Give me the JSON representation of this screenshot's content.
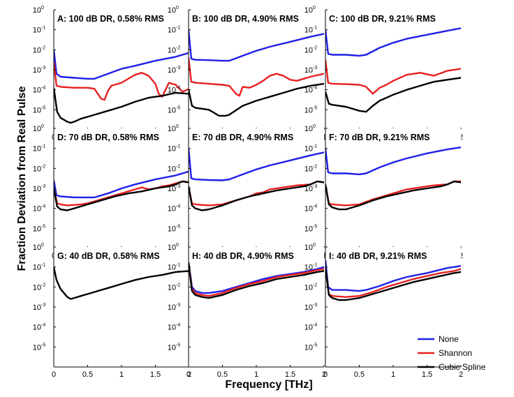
{
  "chart_data": {
    "type": "line",
    "xlabel": "Frequency [THz]",
    "ylabel": "Fraction Deviation from Real Pulse",
    "xlim": [
      0,
      2
    ],
    "ylim_log10": [
      -6,
      0
    ],
    "x_ticks": [
      "0",
      "0.5",
      "1",
      "1.5",
      "2"
    ],
    "y_ticks": [
      {
        "base": "10",
        "exp": "0"
      },
      {
        "base": "10",
        "exp": "-1"
      },
      {
        "base": "10",
        "exp": "-2"
      },
      {
        "base": "10",
        "exp": "-3"
      },
      {
        "base": "10",
        "exp": "-4"
      },
      {
        "base": "10",
        "exp": "-5"
      }
    ],
    "series_colors": {
      "None": "#1f1fe8",
      "Shannon": "#e81f1f",
      "Cubic Spline": "#000000"
    },
    "legend": {
      "location": "bottom-right",
      "entries": [
        {
          "name": "None",
          "color": "#1f1fe8"
        },
        {
          "name": "Shannon",
          "color": "#e81f1f"
        },
        {
          "name": "Cubic Spline",
          "color": "#000000"
        }
      ]
    },
    "panels": [
      {
        "title": "A: 100 dB DR, 0.58% RMS",
        "series": [
          {
            "name": "None",
            "x": [
              0,
              0.04,
              0.1,
              0.3,
              0.5,
              0.6,
              0.8,
              1.0,
              1.2,
              1.5,
              1.8,
              2.0
            ],
            "log10y": [
              -2.0,
              -3.2,
              -3.35,
              -3.4,
              -3.45,
              -3.45,
              -3.2,
              -2.95,
              -2.8,
              -2.55,
              -2.35,
              -2.15
            ]
          },
          {
            "name": "Shannon",
            "x": [
              0,
              0.04,
              0.1,
              0.3,
              0.5,
              0.6,
              0.7,
              0.75,
              0.8,
              0.85,
              0.9,
              1.0,
              1.1,
              1.2,
              1.3,
              1.4,
              1.5,
              1.55,
              1.6,
              1.7,
              1.8,
              1.9,
              2.0
            ],
            "log10y": [
              -2.6,
              -3.8,
              -3.85,
              -3.9,
              -3.9,
              -3.95,
              -4.45,
              -4.5,
              -4.05,
              -3.8,
              -3.75,
              -3.65,
              -3.45,
              -3.25,
              -3.15,
              -3.3,
              -3.7,
              -4.2,
              -4.35,
              -3.65,
              -3.75,
              -4.1,
              -3.95
            ]
          },
          {
            "name": "Cubic Spline",
            "x": [
              0,
              0.05,
              0.1,
              0.2,
              0.25,
              0.3,
              0.4,
              0.5,
              0.6,
              0.8,
              1.0,
              1.2,
              1.4,
              1.6,
              1.8,
              2.0
            ],
            "log10y": [
              -3.9,
              -5.1,
              -5.4,
              -5.6,
              -5.65,
              -5.6,
              -5.45,
              -5.35,
              -5.25,
              -5.05,
              -4.85,
              -4.6,
              -4.4,
              -4.3,
              -4.15,
              -4.2
            ]
          }
        ]
      },
      {
        "title": "B: 100 dB DR, 4.90% RMS",
        "series": [
          {
            "name": "None",
            "x": [
              0,
              0.04,
              0.1,
              0.3,
              0.5,
              0.6,
              0.8,
              1.0,
              1.2,
              1.5,
              1.8,
              2.0
            ],
            "log10y": [
              -1.0,
              -2.45,
              -2.5,
              -2.52,
              -2.55,
              -2.55,
              -2.3,
              -2.05,
              -1.85,
              -1.6,
              -1.35,
              -1.2
            ]
          },
          {
            "name": "Shannon",
            "x": [
              0,
              0.04,
              0.1,
              0.3,
              0.5,
              0.6,
              0.7,
              0.75,
              0.8,
              0.9,
              1.0,
              1.1,
              1.2,
              1.3,
              1.4,
              1.5,
              1.6,
              1.8,
              2.0
            ],
            "log10y": [
              -2.4,
              -3.6,
              -3.65,
              -3.7,
              -3.75,
              -3.8,
              -4.2,
              -4.3,
              -3.85,
              -3.9,
              -3.75,
              -3.55,
              -3.3,
              -3.2,
              -3.3,
              -3.5,
              -3.55,
              -3.35,
              -3.2
            ]
          },
          {
            "name": "Cubic Spline",
            "x": [
              0,
              0.05,
              0.1,
              0.3,
              0.45,
              0.55,
              0.6,
              0.8,
              1.0,
              1.2,
              1.4,
              1.6,
              1.8,
              2.0
            ],
            "log10y": [
              -4.0,
              -4.8,
              -4.9,
              -5.0,
              -5.3,
              -5.3,
              -5.25,
              -4.8,
              -4.55,
              -4.35,
              -4.15,
              -3.95,
              -3.8,
              -3.7
            ]
          }
        ]
      },
      {
        "title": "C: 100 dB DR, 9.21% RMS",
        "series": [
          {
            "name": "None",
            "x": [
              0,
              0.04,
              0.1,
              0.3,
              0.5,
              0.6,
              0.8,
              1.0,
              1.2,
              1.5,
              1.8,
              2.0
            ],
            "log10y": [
              -1.0,
              -2.2,
              -2.25,
              -2.25,
              -2.3,
              -2.25,
              -1.9,
              -1.65,
              -1.45,
              -1.25,
              -1.05,
              -0.92
            ]
          },
          {
            "name": "Shannon",
            "x": [
              0,
              0.04,
              0.1,
              0.3,
              0.5,
              0.6,
              0.7,
              0.8,
              0.9,
              1.0,
              1.2,
              1.4,
              1.6,
              1.8,
              2.0
            ],
            "log10y": [
              -2.5,
              -3.65,
              -3.7,
              -3.72,
              -3.75,
              -3.85,
              -4.2,
              -3.9,
              -3.75,
              -3.55,
              -3.25,
              -3.15,
              -3.3,
              -3.05,
              -2.95
            ]
          },
          {
            "name": "Cubic Spline",
            "x": [
              0,
              0.05,
              0.1,
              0.3,
              0.5,
              0.6,
              0.7,
              0.8,
              1.0,
              1.2,
              1.4,
              1.6,
              1.8,
              2.0
            ],
            "log10y": [
              -4.1,
              -4.7,
              -4.75,
              -4.85,
              -5.05,
              -5.1,
              -4.8,
              -4.55,
              -4.25,
              -4.0,
              -3.8,
              -3.6,
              -3.5,
              -3.4
            ]
          }
        ]
      },
      {
        "title": "D: 70 dB DR, 0.58% RMS",
        "series": [
          {
            "name": "None",
            "x": [
              0,
              0.04,
              0.1,
              0.3,
              0.5,
              0.6,
              0.8,
              1.0,
              1.2,
              1.5,
              1.8,
              2.0
            ],
            "log10y": [
              -2.6,
              -3.35,
              -3.4,
              -3.45,
              -3.45,
              -3.45,
              -3.25,
              -3.0,
              -2.8,
              -2.55,
              -2.35,
              -2.15
            ]
          },
          {
            "name": "Shannon",
            "x": [
              0,
              0.05,
              0.1,
              0.2,
              0.4,
              0.5,
              0.7,
              0.9,
              1.0,
              1.1,
              1.2,
              1.3,
              1.4,
              1.5,
              1.6,
              1.7,
              1.8,
              1.9,
              2.0
            ],
            "log10y": [
              -3.0,
              -3.75,
              -3.8,
              -3.85,
              -3.8,
              -3.75,
              -3.55,
              -3.35,
              -3.25,
              -3.15,
              -3.05,
              -2.95,
              -3.05,
              -3.0,
              -2.9,
              -2.85,
              -2.75,
              -2.65,
              -2.7
            ]
          },
          {
            "name": "Cubic Spline",
            "x": [
              0,
              0.05,
              0.1,
              0.2,
              0.3,
              0.5,
              0.7,
              0.9,
              1.1,
              1.3,
              1.5,
              1.7,
              1.8,
              1.9,
              2.0
            ],
            "log10y": [
              -3.0,
              -3.9,
              -4.05,
              -4.1,
              -4.0,
              -3.8,
              -3.6,
              -3.4,
              -3.25,
              -3.15,
              -3.0,
              -2.9,
              -2.8,
              -2.65,
              -2.7
            ]
          }
        ]
      },
      {
        "title": "E: 70 dB DR, 4.90% RMS",
        "series": [
          {
            "name": "None",
            "x": [
              0,
              0.04,
              0.1,
              0.3,
              0.5,
              0.6,
              0.8,
              1.0,
              1.2,
              1.5,
              1.8,
              2.0
            ],
            "log10y": [
              -1.0,
              -2.5,
              -2.55,
              -2.58,
              -2.6,
              -2.55,
              -2.3,
              -2.05,
              -1.85,
              -1.6,
              -1.35,
              -1.2
            ]
          },
          {
            "name": "Shannon",
            "x": [
              0,
              0.05,
              0.1,
              0.3,
              0.5,
              0.7,
              0.9,
              1.0,
              1.1,
              1.2,
              1.4,
              1.6,
              1.8,
              1.9,
              2.0
            ],
            "log10y": [
              -2.9,
              -3.75,
              -3.8,
              -3.85,
              -3.8,
              -3.6,
              -3.4,
              -3.25,
              -3.2,
              -3.05,
              -2.95,
              -2.85,
              -2.8,
              -2.65,
              -2.7
            ]
          },
          {
            "name": "Cubic Spline",
            "x": [
              0,
              0.05,
              0.1,
              0.2,
              0.3,
              0.5,
              0.7,
              0.9,
              1.1,
              1.3,
              1.5,
              1.7,
              1.8,
              1.9,
              2.0
            ],
            "log10y": [
              -2.9,
              -3.85,
              -4.0,
              -4.1,
              -4.05,
              -3.85,
              -3.6,
              -3.4,
              -3.25,
              -3.1,
              -3.0,
              -2.9,
              -2.8,
              -2.65,
              -2.7
            ]
          }
        ]
      },
      {
        "title": "F: 70 dB DR, 9.21% RMS",
        "series": [
          {
            "name": "None",
            "x": [
              0,
              0.04,
              0.1,
              0.3,
              0.5,
              0.6,
              0.8,
              1.0,
              1.2,
              1.5,
              1.8,
              2.0
            ],
            "log10y": [
              -1.0,
              -2.2,
              -2.25,
              -2.25,
              -2.3,
              -2.25,
              -1.95,
              -1.7,
              -1.5,
              -1.25,
              -1.05,
              -0.95
            ]
          },
          {
            "name": "Shannon",
            "x": [
              0,
              0.05,
              0.1,
              0.3,
              0.5,
              0.7,
              0.9,
              1.0,
              1.1,
              1.2,
              1.3,
              1.4,
              1.5,
              1.6,
              1.8,
              1.9,
              2.0
            ],
            "log10y": [
              -2.8,
              -3.75,
              -3.8,
              -3.85,
              -3.8,
              -3.55,
              -3.35,
              -3.25,
              -3.15,
              -3.05,
              -3.0,
              -2.95,
              -2.9,
              -2.85,
              -2.8,
              -2.65,
              -2.65
            ]
          },
          {
            "name": "Cubic Spline",
            "x": [
              0,
              0.05,
              0.1,
              0.2,
              0.3,
              0.5,
              0.7,
              0.9,
              1.1,
              1.3,
              1.5,
              1.7,
              1.8,
              1.9,
              2.0
            ],
            "log10y": [
              -2.8,
              -3.8,
              -3.95,
              -4.05,
              -4.05,
              -3.85,
              -3.6,
              -3.4,
              -3.25,
              -3.1,
              -3.0,
              -2.9,
              -2.8,
              -2.65,
              -2.7
            ]
          }
        ]
      },
      {
        "title": "G: 40 dB DR, 0.58% RMS",
        "series": [
          {
            "name": "Cubic Spline",
            "x": [
              0,
              0.04,
              0.1,
              0.2,
              0.25,
              0.3,
              0.4,
              0.5,
              0.6,
              0.8,
              1.0,
              1.2,
              1.4,
              1.6,
              1.8,
              2.0
            ],
            "log10y": [
              -1.0,
              -1.65,
              -2.1,
              -2.5,
              -2.6,
              -2.55,
              -2.45,
              -2.35,
              -2.25,
              -2.05,
              -1.85,
              -1.65,
              -1.5,
              -1.4,
              -1.25,
              -1.2
            ]
          }
        ]
      },
      {
        "title": "H: 40 dB DR, 4.90% RMS",
        "series": [
          {
            "name": "None",
            "x": [
              0,
              0.05,
              0.1,
              0.2,
              0.3,
              0.5,
              0.7,
              0.9,
              1.1,
              1.3,
              1.5,
              1.7,
              1.9,
              2.0
            ],
            "log10y": [
              -0.75,
              -2.0,
              -2.2,
              -2.3,
              -2.3,
              -2.2,
              -2.0,
              -1.8,
              -1.6,
              -1.45,
              -1.35,
              -1.25,
              -1.1,
              -1.0
            ]
          },
          {
            "name": "Shannon",
            "x": [
              0,
              0.05,
              0.1,
              0.2,
              0.3,
              0.5,
              0.7,
              0.9,
              1.1,
              1.3,
              1.5,
              1.7,
              1.9,
              2.0
            ],
            "log10y": [
              -0.8,
              -2.1,
              -2.3,
              -2.4,
              -2.45,
              -2.3,
              -2.05,
              -1.85,
              -1.7,
              -1.5,
              -1.4,
              -1.3,
              -1.15,
              -1.1
            ]
          },
          {
            "name": "Cubic Spline",
            "x": [
              0,
              0.05,
              0.1,
              0.2,
              0.3,
              0.5,
              0.7,
              0.9,
              1.1,
              1.3,
              1.5,
              1.7,
              1.9,
              2.0
            ],
            "log10y": [
              -0.8,
              -2.2,
              -2.4,
              -2.5,
              -2.55,
              -2.4,
              -2.15,
              -1.95,
              -1.8,
              -1.6,
              -1.5,
              -1.4,
              -1.25,
              -1.2
            ]
          }
        ]
      },
      {
        "title": "I: 40 dB DR, 9.21% RMS",
        "series": [
          {
            "name": "None",
            "x": [
              0,
              0.04,
              0.1,
              0.3,
              0.5,
              0.6,
              0.8,
              1.0,
              1.2,
              1.5,
              1.8,
              2.0
            ],
            "log10y": [
              -0.65,
              -2.0,
              -2.15,
              -2.15,
              -2.2,
              -2.15,
              -1.95,
              -1.7,
              -1.5,
              -1.3,
              -1.05,
              -0.95
            ]
          },
          {
            "name": "Shannon",
            "x": [
              0,
              0.05,
              0.1,
              0.3,
              0.5,
              0.7,
              0.9,
              1.1,
              1.3,
              1.5,
              1.7,
              1.9,
              2.0
            ],
            "log10y": [
              -1.0,
              -2.35,
              -2.45,
              -2.5,
              -2.45,
              -2.25,
              -2.0,
              -1.8,
              -1.6,
              -1.45,
              -1.3,
              -1.2,
              -1.1
            ]
          },
          {
            "name": "Cubic Spline",
            "x": [
              0,
              0.05,
              0.1,
              0.2,
              0.3,
              0.5,
              0.7,
              0.9,
              1.1,
              1.3,
              1.5,
              1.7,
              1.9,
              2.0
            ],
            "log10y": [
              -1.0,
              -2.4,
              -2.55,
              -2.65,
              -2.65,
              -2.55,
              -2.35,
              -2.15,
              -1.95,
              -1.75,
              -1.6,
              -1.45,
              -1.3,
              -1.25
            ]
          }
        ]
      }
    ]
  }
}
